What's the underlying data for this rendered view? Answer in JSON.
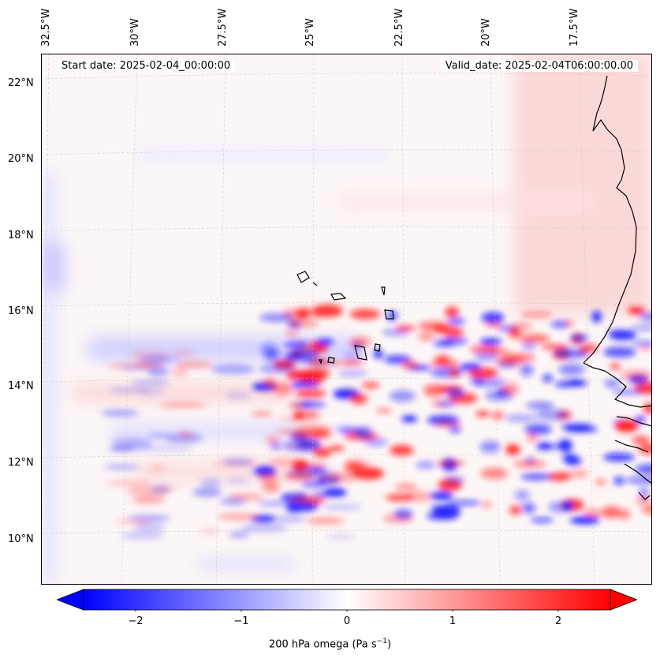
{
  "map": {
    "lon_labels": [
      "32.5°W",
      "30°W",
      "27.5°W",
      "25°W",
      "22.5°W",
      "20°W",
      "17.5°W"
    ],
    "lat_labels": [
      "22°N",
      "20°N",
      "18°N",
      "16°N",
      "14°N",
      "12°N",
      "10°N"
    ],
    "start_date": "Start date: 2025-02-04_00:00:00",
    "valid_date": "Valid_date: 2025-02-04T06:00:00.00"
  },
  "colorbar": {
    "ticks": [
      "−2",
      "−1",
      "0",
      "1",
      "2"
    ],
    "label": "200 hPa omega (Pa s",
    "label_sup": "−1",
    "label_end": ")",
    "colors": {
      "min": "#0000ff",
      "mid": "#ffffff",
      "max": "#ff0000"
    }
  }
}
